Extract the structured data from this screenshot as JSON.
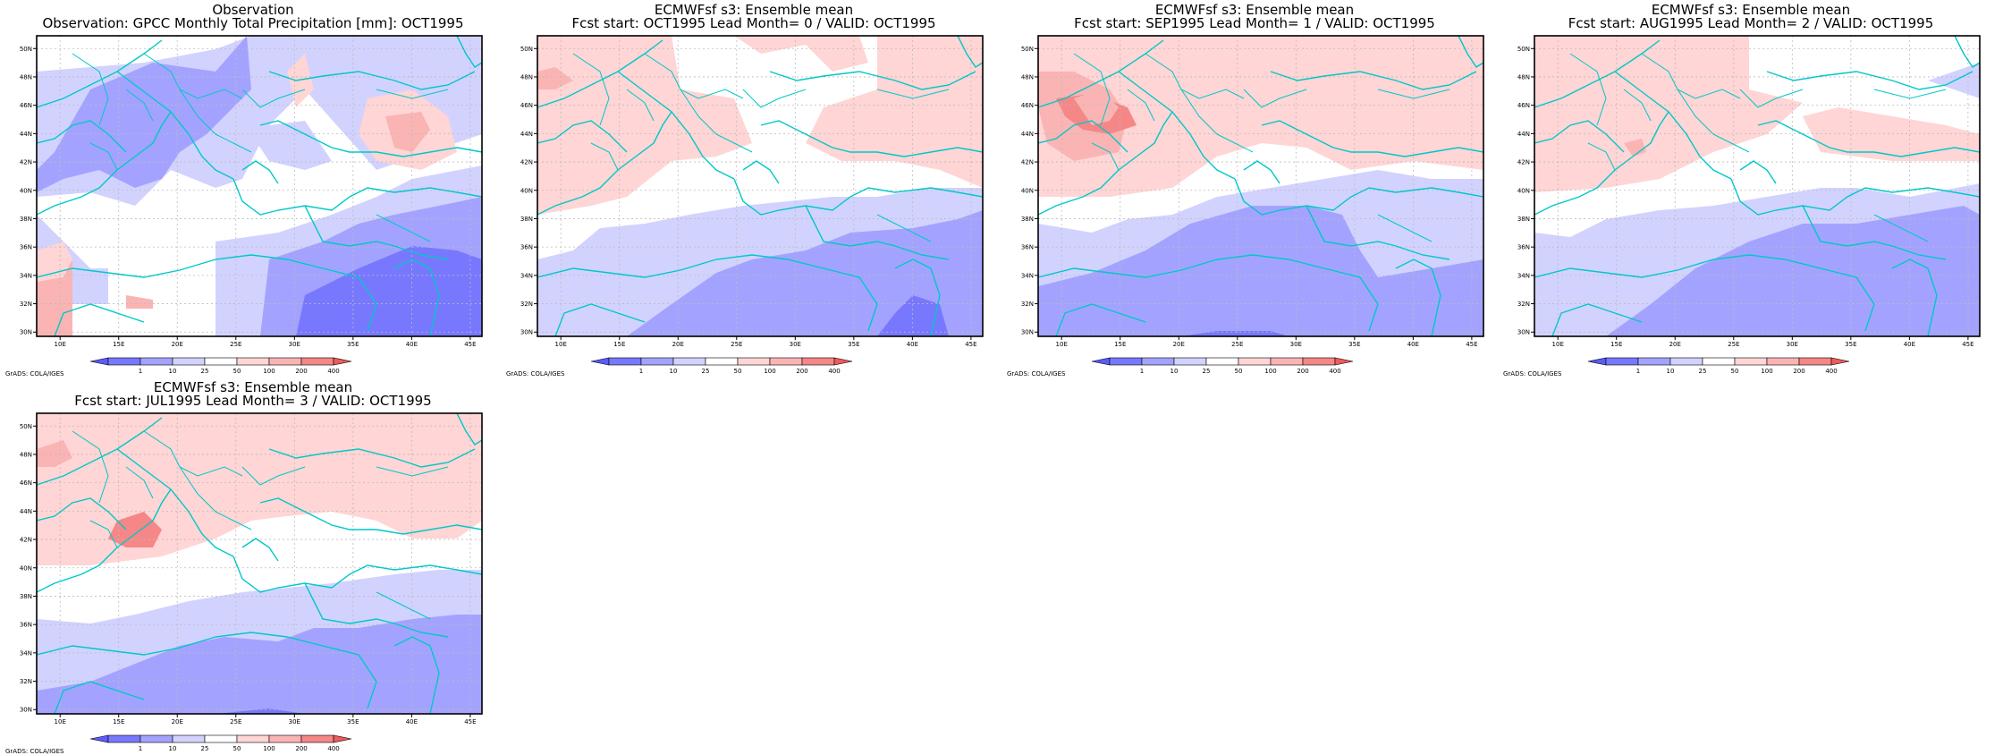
{
  "palette": {
    "blue_levels": [
      "#5b5bff",
      "#7878ff",
      "#a3a3ff",
      "#d2d2ff"
    ],
    "red_levels": [
      "#ffd5d5",
      "#fab4b4",
      "#f58787",
      "#f05a5a"
    ],
    "coast": "#00c8c8",
    "grid": "#bbbbbb"
  },
  "map_axes": {
    "lon_labels": [
      "10E",
      "15E",
      "20E",
      "25E",
      "30E",
      "35E",
      "40E",
      "45E"
    ],
    "lat_labels": [
      "30N",
      "32N",
      "34N",
      "36N",
      "38N",
      "40N",
      "42N",
      "44N",
      "46N",
      "48N",
      "50N"
    ]
  },
  "colorbar_labels": [
    "1",
    "10",
    "25",
    "50",
    "100",
    "200",
    "400"
  ],
  "credit": "GrADS: COLA/IGES",
  "panels": [
    {
      "title1": "Observation",
      "title2": "Observation: GPCC Monthly Total Precipitation [mm]: OCT1995",
      "kind": "obs"
    },
    {
      "title1": "ECMWFsf s3: Ensemble mean",
      "title2": "Fcst start: OCT1995  Lead Month= 0 / VALID: OCT1995",
      "kind": "lead0"
    },
    {
      "title1": "ECMWFsf s3: Ensemble mean",
      "title2": "Fcst start: SEP1995  Lead Month= 1 / VALID: OCT1995",
      "kind": "lead1"
    },
    {
      "title1": "ECMWFsf s3: Ensemble mean",
      "title2": "Fcst start: AUG1995  Lead Month= 2 / VALID: OCT1995",
      "kind": "lead2"
    },
    {
      "title1": "ECMWFsf s3: Ensemble mean",
      "title2": "Fcst start: JUL1995  Lead Month= 3 / VALID: OCT1995",
      "kind": "lead3"
    }
  ]
}
